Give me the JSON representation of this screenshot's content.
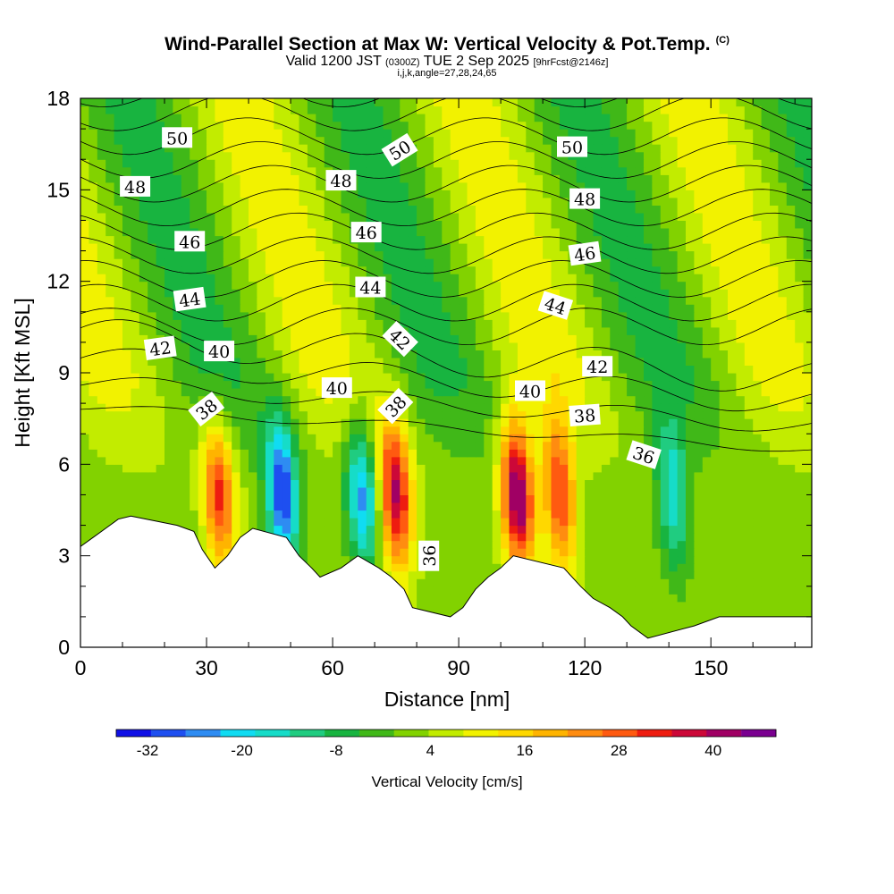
{
  "header": {
    "title": "Wind-Parallel Section at Max W: Vertical Velocity & Pot.Temp.",
    "title_tag": "(C)",
    "sub_pre": "Valid 1200 JST",
    "sub_utc": "(0300Z)",
    "sub_date": "TUE 2 Sep 2025",
    "sub_fcst": "[9hrFcst@2146z]",
    "indices": "i,j,k,angle=27,28,24,65"
  },
  "chart_data": {
    "type": "heatmap",
    "title": "Wind-Parallel Section at Max W: Vertical Velocity & Pot.Temp.",
    "xlabel": "Distance [nm]",
    "ylabel": "Height [Kft MSL]",
    "xlim": [
      0,
      174
    ],
    "ylim": [
      0,
      18
    ],
    "x_ticks": [
      0,
      30,
      60,
      90,
      120,
      150
    ],
    "y_ticks": [
      0,
      3,
      6,
      9,
      12,
      15,
      18
    ],
    "grid": false,
    "colorbar": {
      "label": "Vertical Velocity [cm/s]",
      "ticks": [
        -32,
        -20,
        -8,
        4,
        16,
        28,
        40
      ],
      "range": [
        -36,
        48
      ],
      "colors": [
        "#1010e6",
        "#1e4ff0",
        "#2e8cf2",
        "#10dcf2",
        "#16dcc8",
        "#20cc80",
        "#18b440",
        "#40b818",
        "#82d200",
        "#c2ec00",
        "#f2f200",
        "#ffd800",
        "#ffb400",
        "#ff8c10",
        "#ff5a10",
        "#ee1c10",
        "#cc0838",
        "#a00064",
        "#7a0090"
      ]
    },
    "updraft_columns_nm": [
      33,
      47,
      62,
      75,
      86,
      104,
      114,
      130,
      140
    ],
    "w_columns": [
      {
        "x": 33,
        "w": 30
      },
      {
        "x": 48,
        "w": -34
      },
      {
        "x": 67,
        "w": -26
      },
      {
        "x": 75,
        "w": 38
      },
      {
        "x": 104,
        "w": 44
      },
      {
        "x": 114,
        "w": 30
      },
      {
        "x": 141,
        "w": -20
      }
    ],
    "terrain": [
      {
        "x": 0,
        "h": 3.3
      },
      {
        "x": 3,
        "h": 3.6
      },
      {
        "x": 6,
        "h": 3.9
      },
      {
        "x": 9,
        "h": 4.2
      },
      {
        "x": 12,
        "h": 4.3
      },
      {
        "x": 23,
        "h": 4.0
      },
      {
        "x": 27,
        "h": 3.8
      },
      {
        "x": 29,
        "h": 3.2
      },
      {
        "x": 32,
        "h": 2.6
      },
      {
        "x": 35,
        "h": 3.0
      },
      {
        "x": 38,
        "h": 3.6
      },
      {
        "x": 41,
        "h": 3.9
      },
      {
        "x": 49,
        "h": 3.6
      },
      {
        "x": 52,
        "h": 3.0
      },
      {
        "x": 55,
        "h": 2.6
      },
      {
        "x": 57,
        "h": 2.3
      },
      {
        "x": 62,
        "h": 2.6
      },
      {
        "x": 66,
        "h": 3.0
      },
      {
        "x": 71,
        "h": 2.6
      },
      {
        "x": 74,
        "h": 2.3
      },
      {
        "x": 77,
        "h": 1.9
      },
      {
        "x": 79,
        "h": 1.3
      },
      {
        "x": 88,
        "h": 1.0
      },
      {
        "x": 91,
        "h": 1.3
      },
      {
        "x": 94,
        "h": 1.9
      },
      {
        "x": 97,
        "h": 2.3
      },
      {
        "x": 100,
        "h": 2.6
      },
      {
        "x": 103,
        "h": 3.0
      },
      {
        "x": 115,
        "h": 2.6
      },
      {
        "x": 119,
        "h": 2.0
      },
      {
        "x": 122,
        "h": 1.6
      },
      {
        "x": 126,
        "h": 1.3
      },
      {
        "x": 129,
        "h": 1.0
      },
      {
        "x": 131,
        "h": 0.7
      },
      {
        "x": 135,
        "h": 0.3
      },
      {
        "x": 146,
        "h": 0.7
      },
      {
        "x": 152,
        "h": 1.0
      },
      {
        "x": 174,
        "h": 1.0
      }
    ],
    "isentropes_K": [
      36,
      37,
      38,
      39,
      40,
      41,
      42,
      43,
      44,
      45,
      46,
      47,
      48,
      49,
      50
    ],
    "contour_labels": [
      {
        "text": "50",
        "x": 23,
        "y": 16.7,
        "rot": 0
      },
      {
        "text": "48",
        "x": 13,
        "y": 15.1,
        "rot": 0
      },
      {
        "text": "46",
        "x": 26,
        "y": 13.3,
        "rot": 0
      },
      {
        "text": "44",
        "x": 26,
        "y": 11.4,
        "rot": -8
      },
      {
        "text": "42",
        "x": 19,
        "y": 9.8,
        "rot": -8
      },
      {
        "text": "40",
        "x": 33,
        "y": 9.7,
        "rot": 0
      },
      {
        "text": "38",
        "x": 30,
        "y": 7.8,
        "rot": -38
      },
      {
        "text": "48",
        "x": 62,
        "y": 15.3,
        "rot": 0
      },
      {
        "text": "50",
        "x": 76,
        "y": 16.3,
        "rot": -32
      },
      {
        "text": "46",
        "x": 68,
        "y": 13.6,
        "rot": 0
      },
      {
        "text": "44",
        "x": 69,
        "y": 11.8,
        "rot": 0
      },
      {
        "text": "42",
        "x": 76,
        "y": 10.1,
        "rot": 44
      },
      {
        "text": "40",
        "x": 61,
        "y": 8.5,
        "rot": 0
      },
      {
        "text": "38",
        "x": 75,
        "y": 7.9,
        "rot": -46
      },
      {
        "text": "36",
        "x": 83,
        "y": 3.0,
        "rot": -90
      },
      {
        "text": "50",
        "x": 117,
        "y": 16.4,
        "rot": 0
      },
      {
        "text": "48",
        "x": 120,
        "y": 14.7,
        "rot": 0
      },
      {
        "text": "46",
        "x": 120,
        "y": 12.9,
        "rot": -8
      },
      {
        "text": "44",
        "x": 113,
        "y": 11.2,
        "rot": 18
      },
      {
        "text": "42",
        "x": 123,
        "y": 9.2,
        "rot": 0
      },
      {
        "text": "40",
        "x": 107,
        "y": 8.4,
        "rot": 0
      },
      {
        "text": "38",
        "x": 120,
        "y": 7.6,
        "rot": -4
      },
      {
        "text": "36",
        "x": 134,
        "y": 6.3,
        "rot": 18
      }
    ]
  }
}
